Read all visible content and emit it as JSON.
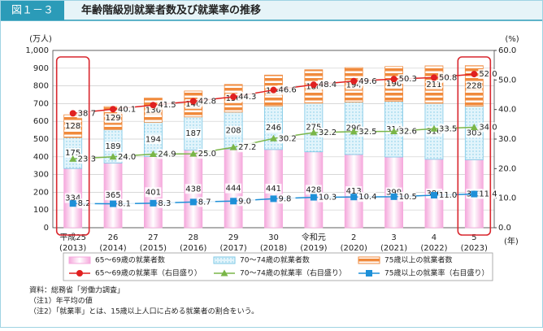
{
  "header": {
    "figure_no": "図１－３",
    "title": "年齢階級別就業者数及び就業率の推移"
  },
  "chart_data": {
    "type": "bar",
    "stacked": true,
    "grid": true,
    "y_label": "(万人)",
    "y2_label": "(%)",
    "x_label": "(年)",
    "categories": [
      "平成25",
      "26",
      "27",
      "28",
      "29",
      "30",
      "令和元",
      "2",
      "3",
      "4",
      "5"
    ],
    "category_sublabels": [
      "(2013)",
      "(2014)",
      "(2015)",
      "(2016)",
      "(2017)",
      "(2018)",
      "(2019)",
      "(2020)",
      "(2021)",
      "(2022)",
      "(2023)"
    ],
    "ylim": [
      0,
      1000
    ],
    "yticks": [
      0,
      100,
      200,
      300,
      400,
      500,
      600,
      700,
      800,
      900,
      {
        "value": 1000,
        "label": "1,000"
      }
    ],
    "y2lim": [
      0,
      60
    ],
    "y2ticks": [
      {
        "value": 0,
        "label": "0.0"
      },
      {
        "value": 10,
        "label": "10.0"
      },
      {
        "value": 20,
        "label": "20.0"
      },
      {
        "value": 30,
        "label": "30.0"
      },
      {
        "value": 40,
        "label": "40.0"
      },
      {
        "value": 50,
        "label": "50.0"
      },
      {
        "value": 60,
        "label": "60.0"
      }
    ],
    "series": [
      {
        "name": "65～69歳の就業者数",
        "type": "bar",
        "color": "#f5a8dc",
        "values": [
          334,
          365,
          401,
          438,
          444,
          441,
          428,
          413,
          399,
          386,
          383
        ]
      },
      {
        "name": "70～74歳の就業者数",
        "type": "bar",
        "color": "#7cc8e6",
        "values": [
          175,
          189,
          194,
          187,
          208,
          246,
          275,
          296,
          314,
          316,
          303
        ]
      },
      {
        "name": "75歳以上の就業者数",
        "type": "bar",
        "color": "#f08a3c",
        "values": [
          128,
          129,
          136,
          146,
          156,
          174,
          188,
          194,
          196,
          211,
          228
        ]
      },
      {
        "name": "65～69歳の就業率（右目盛り）",
        "type": "line",
        "axis": "y2",
        "marker": "circle",
        "color": "#e02020",
        "values": [
          38.7,
          40.1,
          41.5,
          42.8,
          44.3,
          46.6,
          48.4,
          49.6,
          50.3,
          50.8,
          52.0
        ],
        "value_labels": [
          "38.7",
          "40.1",
          "41.5",
          "42.8",
          "44.3",
          "46.6",
          "48.4",
          "49.6",
          "50.3",
          "50.8",
          "52.0"
        ]
      },
      {
        "name": "70～74歳の就業率（右目盛り）",
        "type": "line",
        "axis": "y2",
        "marker": "triangle",
        "color": "#7ab648",
        "values": [
          23.3,
          24.0,
          24.9,
          25.0,
          27.2,
          30.2,
          32.2,
          32.5,
          32.6,
          33.5,
          34.0
        ],
        "value_labels": [
          "23.3",
          "24.0",
          "24.9",
          "25.0",
          "27.2",
          "30.2",
          "32.2",
          "32.5",
          "32.6",
          "33.5",
          "34.0"
        ]
      },
      {
        "name": "75歳以上の就業率（右目盛り）",
        "type": "line",
        "axis": "y2",
        "marker": "square",
        "color": "#1e90d8",
        "values": [
          8.2,
          8.1,
          8.3,
          8.7,
          9.0,
          9.8,
          10.3,
          10.4,
          10.5,
          11.0,
          11.4
        ],
        "value_labels": [
          "8.2",
          "8.1",
          "8.3",
          "8.7",
          "9.0",
          "9.8",
          "10.3",
          "10.4",
          "10.5",
          "11.0",
          "11.4"
        ]
      }
    ]
  },
  "notes": [
    "資料：総務省「労働力調査」",
    "（注1）年平均の値",
    "（注2）「就業率」とは、15歳以上人口に占める就業者の割合をいう。"
  ]
}
